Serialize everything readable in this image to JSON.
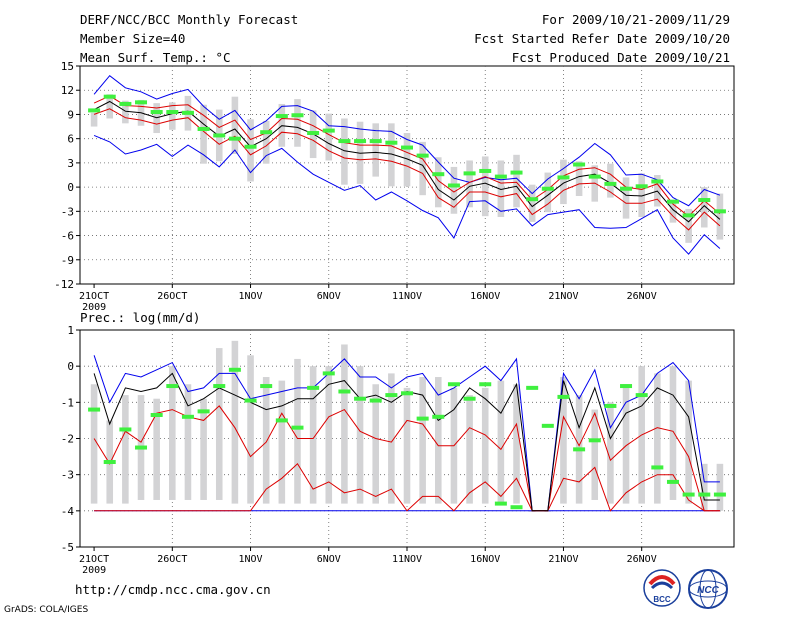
{
  "header": {
    "title": "DERF/NCC/BCC Monthly Forecast",
    "member_size": "Member Size=40",
    "variable": "Mean Surf. Temp.: °C",
    "for_period": "For 2009/10/21-2009/11/29",
    "fcst_started": "Fcst Started Refer Date 2009/10/20",
    "fcst_produced": "Fcst Produced Date 2009/10/21"
  },
  "prec_label": "Prec.: log(mm/d)",
  "footer": {
    "url": "http://cmdp.ncc.cma.gov.cn",
    "grads": "GrADS: COLA/IGES",
    "logo_left_text": "BCC",
    "logo_right_text": "NCC"
  },
  "colors": {
    "box": "#d3d3d5",
    "obs": "#3ff03f",
    "mean": "#000000",
    "envelope": "#0000ee",
    "quartile": "#dd0000"
  },
  "chart_data": [
    {
      "type": "line",
      "title": "Mean Surf. Temp.: °C",
      "x_ticks": [
        "21OCT",
        "26OCT",
        "1NOV",
        "6NOV",
        "11NOV",
        "16NOV",
        "21NOV",
        "26NOV"
      ],
      "x_tick_days": [
        1,
        6,
        11,
        16,
        21,
        26,
        31,
        36
      ],
      "x_sublabel": "2009",
      "ylim": [
        -12,
        15
      ],
      "y_ticks": [
        "-12",
        "-9",
        "-6",
        "-3",
        "0",
        "3",
        "6",
        "9",
        "12",
        "15"
      ],
      "grid": "dotted",
      "series": [
        {
          "name": "max",
          "values": [
            11.5,
            13.8,
            12.3,
            11.8,
            10.9,
            11.6,
            12.1,
            10.0,
            8.4,
            9.5,
            7.1,
            8.2,
            10.0,
            10.1,
            9.4,
            7.6,
            7.5,
            7.2,
            7.0,
            6.9,
            5.9,
            5.2,
            3.1,
            1.1,
            0.6,
            1.2,
            0.9,
            1.1,
            -0.8,
            1.0,
            2.3,
            3.7,
            5.4,
            4.0,
            1.5,
            1.6,
            0.9,
            -1.3,
            -2.3,
            -0.3,
            -1.0
          ]
        },
        {
          "name": "upper_quartile",
          "values": [
            10.4,
            11.3,
            10.1,
            10.0,
            9.8,
            10.1,
            10.2,
            8.9,
            7.4,
            8.3,
            5.9,
            6.7,
            8.5,
            8.4,
            7.6,
            6.5,
            5.5,
            5.2,
            5.2,
            5.1,
            4.3,
            3.5,
            0.8,
            -0.6,
            0.6,
            1.3,
            0.5,
            0.6,
            -1.6,
            -0.3,
            1.4,
            2.2,
            2.4,
            1.6,
            0.0,
            -0.3,
            0.4,
            -2.1,
            -3.6,
            -1.7,
            -3.3
          ]
        },
        {
          "name": "mean",
          "values": [
            9.6,
            10.6,
            9.4,
            9.2,
            8.6,
            9.1,
            9.4,
            7.8,
            6.3,
            7.2,
            5.0,
            6.0,
            7.6,
            7.4,
            6.6,
            5.4,
            4.5,
            4.2,
            4.3,
            4.1,
            3.5,
            2.7,
            -0.3,
            -1.6,
            0.1,
            0.5,
            -0.3,
            0.1,
            -2.4,
            -1.0,
            0.5,
            1.3,
            1.6,
            0.5,
            -1.0,
            -1.1,
            -0.5,
            -2.8,
            -4.3,
            -2.3,
            -4.0
          ]
        },
        {
          "name": "lower_quartile",
          "values": [
            9.0,
            9.7,
            8.6,
            8.3,
            7.8,
            8.3,
            8.6,
            6.9,
            5.3,
            6.3,
            4.0,
            5.1,
            6.8,
            6.6,
            5.8,
            4.5,
            3.6,
            3.4,
            3.5,
            3.2,
            2.6,
            1.7,
            -1.3,
            -2.5,
            -0.6,
            -0.6,
            -1.2,
            -0.8,
            -3.4,
            -2.1,
            -0.4,
            0.4,
            0.5,
            -0.6,
            -2.0,
            -2.0,
            -1.5,
            -3.6,
            -5.3,
            -3.1,
            -4.8
          ]
        },
        {
          "name": "min",
          "values": [
            6.4,
            5.6,
            4.1,
            4.6,
            5.3,
            3.8,
            5.2,
            4.0,
            2.5,
            4.6,
            1.8,
            3.9,
            4.8,
            3.1,
            1.6,
            0.6,
            -0.4,
            0.2,
            -1.6,
            -0.6,
            -1.7,
            -2.9,
            -3.8,
            -6.3,
            -1.8,
            -1.7,
            -3.0,
            -2.7,
            -4.8,
            -3.4,
            -3.1,
            -2.8,
            -5.0,
            -5.1,
            -5.0,
            -3.9,
            -2.8,
            -6.3,
            -8.3,
            -5.9,
            -7.6
          ]
        },
        {
          "name": "box_top",
          "values": [
            9.2,
            11.5,
            10.7,
            10.8,
            10.4,
            10.5,
            11.3,
            10.2,
            9.6,
            11.2,
            8.4,
            8.2,
            10.3,
            10.9,
            9.5,
            9.1,
            8.5,
            8.1,
            7.9,
            7.9,
            6.7,
            5.6,
            3.7,
            2.5,
            3.3,
            3.8,
            3.3,
            4.0,
            0.3,
            1.8,
            3.4,
            3.2,
            2.7,
            2.9,
            1.2,
            1.7,
            1.5,
            -1.6,
            -2.7,
            0.0,
            -0.8
          ]
        },
        {
          "name": "box_bottom",
          "values": [
            7.5,
            8.5,
            7.9,
            7.6,
            6.7,
            7.1,
            7.0,
            2.9,
            3.2,
            4.1,
            0.7,
            2.9,
            5.0,
            5.0,
            3.6,
            3.3,
            0.3,
            0.4,
            1.3,
            0.1,
            0.1,
            -1.0,
            -2.5,
            -3.3,
            -2.5,
            -3.6,
            -3.7,
            -2.5,
            -4.3,
            -3.1,
            -2.1,
            -1.1,
            -1.8,
            -1.3,
            -3.9,
            -3.7,
            -2.4,
            -4.4,
            -6.9,
            -5.0,
            -6.5
          ]
        },
        {
          "name": "observed",
          "values": [
            9.5,
            11.2,
            10.3,
            10.5,
            9.3,
            9.3,
            9.2,
            7.2,
            6.4,
            6.0,
            5.0,
            6.8,
            8.8,
            8.9,
            6.7,
            7.0,
            5.7,
            5.7,
            5.7,
            5.5,
            4.9,
            3.9,
            1.6,
            0.2,
            1.7,
            2.0,
            1.3,
            1.8,
            -1.5,
            -0.2,
            1.2,
            2.8,
            1.3,
            0.4,
            -0.2,
            0.1,
            0.7,
            -1.8,
            -3.5,
            -1.6,
            -3.0
          ]
        }
      ]
    },
    {
      "type": "line",
      "title": "Prec.: log(mm/d)",
      "x_ticks": [
        "21OCT",
        "26OCT",
        "1NOV",
        "6NOV",
        "11NOV",
        "16NOV",
        "21NOV",
        "26NOV"
      ],
      "x_tick_days": [
        1,
        6,
        11,
        16,
        21,
        26,
        31,
        36
      ],
      "x_sublabel": "2009",
      "ylim": [
        -5,
        1
      ],
      "y_ticks": [
        "-5",
        "-4",
        "-3",
        "-2",
        "-1",
        "0",
        "1"
      ],
      "grid": "dotted",
      "series": [
        {
          "name": "max",
          "values": [
            0.3,
            -1.0,
            -0.2,
            -0.3,
            -0.1,
            0.1,
            -0.7,
            -0.6,
            -0.2,
            -0.2,
            -0.9,
            -0.8,
            -0.7,
            -0.6,
            -0.6,
            -0.2,
            0.2,
            -0.3,
            -0.3,
            -0.6,
            -0.3,
            -0.2,
            -0.8,
            -0.6,
            -0.3,
            0.0,
            -0.4,
            0.2,
            -4.0,
            -4.0,
            -0.2,
            -0.9,
            -0.1,
            -1.7,
            -1.0,
            -0.8,
            -0.2,
            0.1,
            -0.4,
            -3.2,
            -3.2
          ]
        },
        {
          "name": "mean",
          "values": [
            -0.2,
            -1.6,
            -0.6,
            -0.7,
            -0.6,
            -0.2,
            -1.1,
            -0.9,
            -0.6,
            -0.8,
            -1.0,
            -1.2,
            -1.1,
            -0.9,
            -0.9,
            -0.5,
            -0.4,
            -0.9,
            -0.8,
            -1.0,
            -0.7,
            -0.8,
            -1.5,
            -1.2,
            -0.6,
            -0.9,
            -1.3,
            -0.5,
            -4.0,
            -4.0,
            -0.4,
            -1.7,
            -0.6,
            -2.0,
            -1.3,
            -1.1,
            -0.6,
            -0.8,
            -1.4,
            -3.7,
            -3.7
          ]
        },
        {
          "name": "upper_quartile",
          "values": [
            -2.0,
            -2.7,
            -1.8,
            -2.1,
            -1.3,
            -1.2,
            -1.4,
            -1.5,
            -1.1,
            -1.7,
            -2.5,
            -2.1,
            -1.3,
            -2.0,
            -2.0,
            -1.4,
            -1.2,
            -1.8,
            -2.0,
            -2.1,
            -1.5,
            -1.6,
            -2.2,
            -2.2,
            -1.7,
            -1.9,
            -2.3,
            -1.6,
            -4.0,
            -4.0,
            -1.4,
            -2.2,
            -1.3,
            -2.6,
            -2.2,
            -1.9,
            -1.7,
            -1.8,
            -2.5,
            -4.0,
            -4.0
          ]
        },
        {
          "name": "lower_quartile",
          "values": [
            -4.0,
            -4.0,
            -4.0,
            -4.0,
            -4.0,
            -4.0,
            -4.0,
            -4.0,
            -4.0,
            -4.0,
            -4.0,
            -3.4,
            -3.1,
            -2.7,
            -3.4,
            -3.2,
            -3.5,
            -3.4,
            -3.6,
            -3.4,
            -4.0,
            -3.6,
            -3.6,
            -4.0,
            -3.5,
            -3.2,
            -3.6,
            -3.1,
            -4.0,
            -4.0,
            -3.1,
            -3.2,
            -2.8,
            -4.0,
            -3.5,
            -3.2,
            -3.0,
            -3.0,
            -3.7,
            -4.0,
            -4.0
          ]
        },
        {
          "name": "min",
          "values": [
            -4.0,
            -4.0,
            -4.0,
            -4.0,
            -4.0,
            -4.0,
            -4.0,
            -4.0,
            -4.0,
            -4.0,
            -4.0,
            -4.0,
            -4.0,
            -4.0,
            -4.0,
            -4.0,
            -4.0,
            -4.0,
            -4.0,
            -4.0,
            -4.0,
            -4.0,
            -4.0,
            -4.0,
            -4.0,
            -4.0,
            -4.0,
            -4.0,
            -4.0,
            -4.0,
            -4.0,
            -4.0,
            -4.0,
            -4.0,
            -4.0,
            -4.0,
            -4.0,
            -4.0,
            -4.0,
            -4.0,
            -4.0
          ]
        },
        {
          "name": "box_top",
          "values": [
            -0.5,
            -1.5,
            -0.8,
            -0.8,
            -0.9,
            0.0,
            -0.5,
            -0.9,
            0.5,
            0.7,
            0.3,
            -0.3,
            -0.4,
            0.2,
            0.0,
            0.0,
            0.6,
            0.0,
            -0.5,
            -0.2,
            -0.6,
            -0.3,
            -0.3,
            -0.6,
            -0.8,
            -0.6,
            -0.4,
            -0.5,
            -4.0,
            -4.0,
            -0.3,
            -0.8,
            -1.2,
            -1.0,
            -0.5,
            0.0,
            -0.2,
            0.0,
            -0.4,
            -2.7,
            -2.7
          ]
        },
        {
          "name": "box_bottom",
          "values": [
            -3.8,
            -3.8,
            -3.8,
            -3.7,
            -3.7,
            -3.7,
            -3.7,
            -3.7,
            -3.7,
            -3.8,
            -3.8,
            -3.8,
            -3.8,
            -3.8,
            -3.8,
            -3.8,
            -3.8,
            -3.8,
            -3.8,
            -3.8,
            -3.8,
            -3.8,
            -3.8,
            -3.8,
            -3.8,
            -3.8,
            -3.8,
            -3.8,
            -4.0,
            -4.0,
            -3.8,
            -3.8,
            -3.7,
            -3.8,
            -3.8,
            -3.8,
            -3.8,
            -3.7,
            -3.8,
            -4.0,
            -4.0
          ]
        },
        {
          "name": "observed",
          "values": [
            -1.2,
            -2.65,
            -1.75,
            -2.25,
            -1.35,
            -0.55,
            -1.4,
            -1.25,
            -0.55,
            -0.1,
            -0.95,
            -0.55,
            -1.5,
            -1.7,
            -0.6,
            -0.2,
            -0.7,
            -0.9,
            -0.95,
            -0.8,
            -0.75,
            -1.45,
            -1.4,
            -0.5,
            -0.9,
            -0.5,
            -3.8,
            -3.9,
            -0.6,
            -1.65,
            -0.85,
            -2.3,
            -2.05,
            -1.1,
            -0.55,
            -0.8,
            -2.8,
            -3.2,
            -3.55,
            -3.55,
            -3.55
          ]
        }
      ]
    }
  ]
}
